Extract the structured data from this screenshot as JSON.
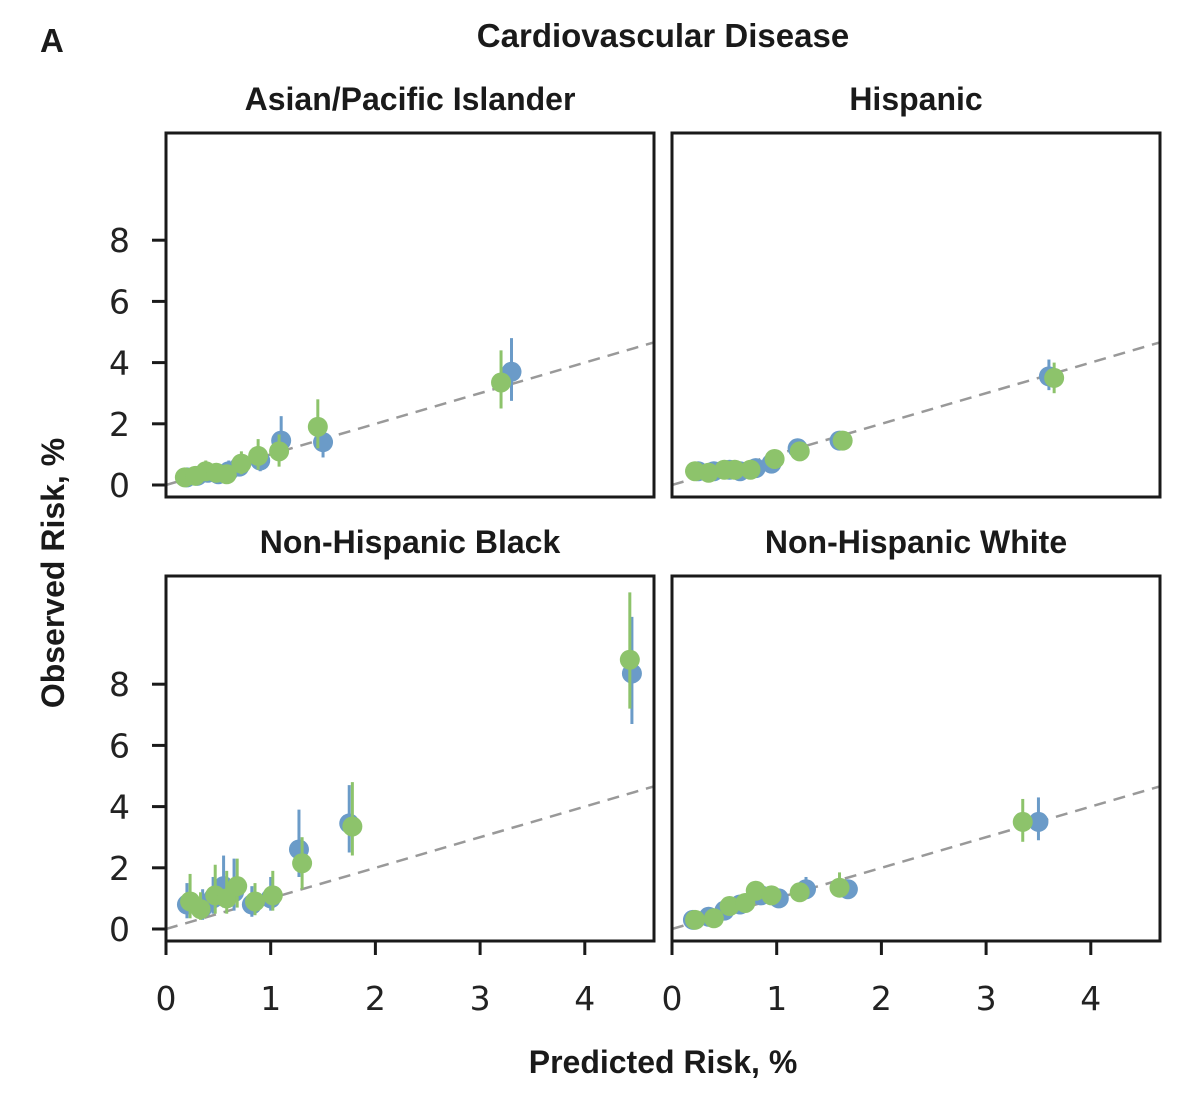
{
  "panel_label": "A",
  "chart_data": {
    "type": "scatter",
    "title": "Cardiovascular Disease",
    "xlabel": "Predicted Risk, %",
    "ylabel": "Observed Risk, %",
    "xlim": [
      0,
      4.7
    ],
    "ylim": [
      -0.4,
      11.3
    ],
    "x_ticks": [
      "0",
      "1",
      "2",
      "3",
      "4"
    ],
    "y_ticks": [
      "0",
      "2",
      "4",
      "6",
      "8"
    ],
    "reference_line": "y = x (dashed gray)",
    "series_colors": [
      "#6b9bc8",
      "#8dc36b"
    ],
    "panels": [
      {
        "title": "Asian/Pacific Islander",
        "series": [
          {
            "name": "series-blue",
            "color": "#6b9bc8",
            "points": [
              [
                0.2,
                0.25,
                0.1,
                0.45
              ],
              [
                0.3,
                0.3,
                0.1,
                0.5
              ],
              [
                0.4,
                0.4,
                0.15,
                0.7
              ],
              [
                0.5,
                0.35,
                0.1,
                0.6
              ],
              [
                0.6,
                0.45,
                0.2,
                0.8
              ],
              [
                0.7,
                0.6,
                0.3,
                1.0
              ],
              [
                0.9,
                0.8,
                0.45,
                1.2
              ],
              [
                1.1,
                1.45,
                0.8,
                2.25
              ],
              [
                1.5,
                1.4,
                0.9,
                2.0
              ],
              [
                3.3,
                3.7,
                2.75,
                4.8
              ]
            ]
          },
          {
            "name": "series-green",
            "color": "#8dc36b",
            "points": [
              [
                0.18,
                0.25,
                0.1,
                0.45
              ],
              [
                0.28,
                0.3,
                0.1,
                0.5
              ],
              [
                0.38,
                0.45,
                0.15,
                0.8
              ],
              [
                0.48,
                0.4,
                0.15,
                0.7
              ],
              [
                0.58,
                0.35,
                0.1,
                0.6
              ],
              [
                0.72,
                0.7,
                0.35,
                1.1
              ],
              [
                0.88,
                0.95,
                0.5,
                1.5
              ],
              [
                1.08,
                1.1,
                0.6,
                1.65
              ],
              [
                1.45,
                1.9,
                1.2,
                2.8
              ],
              [
                3.2,
                3.35,
                2.5,
                4.4
              ]
            ]
          }
        ]
      },
      {
        "title": "Hispanic",
        "series": [
          {
            "name": "series-blue",
            "color": "#6b9bc8",
            "points": [
              [
                0.25,
                0.45,
                0.3,
                0.6
              ],
              [
                0.4,
                0.45,
                0.3,
                0.6
              ],
              [
                0.55,
                0.5,
                0.35,
                0.7
              ],
              [
                0.65,
                0.45,
                0.3,
                0.6
              ],
              [
                0.8,
                0.55,
                0.35,
                0.8
              ],
              [
                0.95,
                0.7,
                0.45,
                0.95
              ],
              [
                1.2,
                1.2,
                0.9,
                1.5
              ],
              [
                1.6,
                1.45,
                1.15,
                1.75
              ],
              [
                3.6,
                3.55,
                3.1,
                4.1
              ]
            ]
          },
          {
            "name": "series-green",
            "color": "#8dc36b",
            "points": [
              [
                0.22,
                0.45,
                0.3,
                0.6
              ],
              [
                0.35,
                0.4,
                0.25,
                0.55
              ],
              [
                0.5,
                0.5,
                0.35,
                0.7
              ],
              [
                0.6,
                0.5,
                0.35,
                0.7
              ],
              [
                0.75,
                0.5,
                0.35,
                0.7
              ],
              [
                0.98,
                0.85,
                0.6,
                1.1
              ],
              [
                1.22,
                1.1,
                0.85,
                1.4
              ],
              [
                1.63,
                1.45,
                1.15,
                1.75
              ],
              [
                3.65,
                3.5,
                3.0,
                4.0
              ]
            ]
          }
        ]
      },
      {
        "title": "Non-Hispanic Black",
        "series": [
          {
            "name": "series-blue",
            "color": "#6b9bc8",
            "points": [
              [
                0.2,
                0.8,
                0.35,
                1.5
              ],
              [
                0.35,
                0.7,
                0.3,
                1.3
              ],
              [
                0.45,
                1.0,
                0.5,
                1.7
              ],
              [
                0.55,
                1.4,
                0.7,
                2.4
              ],
              [
                0.65,
                1.2,
                0.6,
                2.3
              ],
              [
                0.82,
                0.8,
                0.4,
                1.4
              ],
              [
                1.0,
                1.0,
                0.6,
                1.7
              ],
              [
                1.27,
                2.6,
                1.7,
                3.9
              ],
              [
                1.75,
                3.45,
                2.5,
                4.7
              ],
              [
                4.45,
                8.35,
                6.7,
                10.2
              ]
            ]
          },
          {
            "name": "series-green",
            "color": "#8dc36b",
            "points": [
              [
                0.23,
                0.9,
                0.35,
                1.8
              ],
              [
                0.33,
                0.65,
                0.3,
                1.2
              ],
              [
                0.47,
                1.1,
                0.5,
                2.1
              ],
              [
                0.58,
                1.0,
                0.5,
                1.9
              ],
              [
                0.68,
                1.4,
                0.7,
                2.3
              ],
              [
                0.85,
                0.9,
                0.45,
                1.5
              ],
              [
                1.02,
                1.1,
                0.6,
                1.9
              ],
              [
                1.3,
                2.15,
                1.3,
                3.0
              ],
              [
                1.78,
                3.35,
                2.4,
                4.8
              ],
              [
                4.43,
                8.8,
                7.2,
                11.0
              ]
            ]
          }
        ]
      },
      {
        "title": "Non-Hispanic White",
        "series": [
          {
            "name": "series-blue",
            "color": "#6b9bc8",
            "points": [
              [
                0.2,
                0.3,
                0.2,
                0.45
              ],
              [
                0.35,
                0.4,
                0.25,
                0.55
              ],
              [
                0.5,
                0.6,
                0.4,
                0.8
              ],
              [
                0.65,
                0.8,
                0.6,
                1.0
              ],
              [
                0.85,
                1.1,
                0.85,
                1.35
              ],
              [
                1.02,
                1.0,
                0.8,
                1.25
              ],
              [
                1.28,
                1.3,
                1.05,
                1.7
              ],
              [
                1.68,
                1.3,
                1.05,
                1.55
              ],
              [
                3.5,
                3.5,
                2.9,
                4.3
              ]
            ]
          },
          {
            "name": "series-green",
            "color": "#8dc36b",
            "points": [
              [
                0.22,
                0.3,
                0.2,
                0.45
              ],
              [
                0.4,
                0.35,
                0.2,
                0.5
              ],
              [
                0.55,
                0.75,
                0.55,
                0.95
              ],
              [
                0.7,
                0.85,
                0.65,
                1.05
              ],
              [
                0.8,
                1.25,
                0.95,
                1.55
              ],
              [
                0.95,
                1.1,
                0.85,
                1.35
              ],
              [
                1.22,
                1.2,
                0.95,
                1.45
              ],
              [
                1.6,
                1.35,
                1.05,
                1.85
              ],
              [
                3.35,
                3.5,
                2.85,
                4.25
              ]
            ]
          }
        ]
      }
    ]
  }
}
